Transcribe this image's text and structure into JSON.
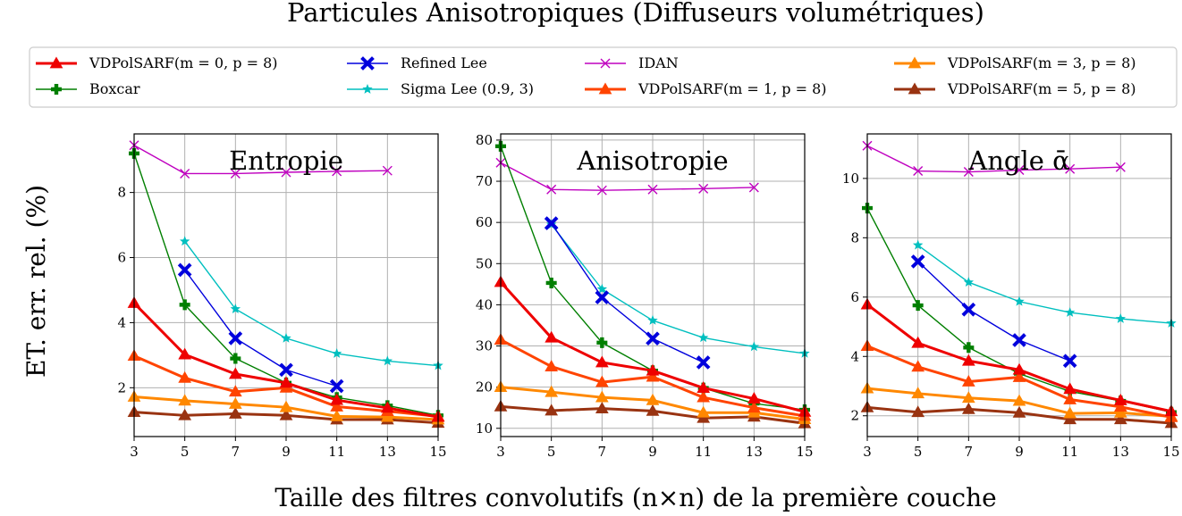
{
  "figure": {
    "suptitle": "Particules Anisotropiques (Diffuseurs volumétriques)",
    "supxlabel": "Taille des filtres convolutifs (n×n) de la première couche",
    "supylabel": "ET. err. rel. (%)"
  },
  "legend": {
    "placement": "top",
    "items": [
      {
        "label": "VDPolSARF(m = 0, p = 8)",
        "color": "#ee0000",
        "marker": "triangle-up",
        "width": "thick"
      },
      {
        "label": "Boxcar",
        "color": "#007f00",
        "marker": "plus",
        "width": "thin"
      },
      {
        "label": "Refined Lee",
        "color": "#0000dd",
        "marker": "x-filled",
        "width": "thin"
      },
      {
        "label": "Sigma Lee (0.9, 3)",
        "color": "#00bfbf",
        "marker": "star",
        "width": "thin"
      },
      {
        "label": "IDAN",
        "color": "#bf00bf",
        "marker": "x",
        "width": "thin"
      },
      {
        "label": "VDPolSARF(m = 1, p = 8)",
        "color": "#ff4400",
        "marker": "triangle-up",
        "width": "thick"
      },
      {
        "label": "VDPolSARF(m = 3, p = 8)",
        "color": "#ff8800",
        "marker": "triangle-up",
        "width": "thick"
      },
      {
        "label": "VDPolSARF(m = 5, p = 8)",
        "color": "#993311",
        "marker": "triangle-up",
        "width": "thick"
      }
    ]
  },
  "chart_data": [
    {
      "type": "line",
      "title": "Entropie",
      "x": [
        3,
        5,
        7,
        9,
        11,
        13,
        15
      ],
      "xlim": [
        3,
        15
      ],
      "ylim": [
        0.5,
        9.8
      ],
      "xticks": [
        3,
        5,
        7,
        9,
        11,
        13,
        15
      ],
      "yticks": [
        2,
        4,
        6,
        8
      ],
      "grid": true,
      "series": [
        {
          "name": "IDAN",
          "values": [
            9.45,
            8.58,
            8.58,
            8.62,
            8.65,
            8.67,
            null
          ]
        },
        {
          "name": "Boxcar",
          "values": [
            9.2,
            4.55,
            2.9,
            2.15,
            1.7,
            1.45,
            1.15
          ]
        },
        {
          "name": "Sigma Lee (0.9, 3)",
          "values": [
            null,
            6.5,
            4.42,
            3.52,
            3.05,
            2.82,
            2.68
          ]
        },
        {
          "name": "Refined Lee",
          "values": [
            null,
            5.62,
            3.52,
            2.55,
            2.05,
            null,
            null
          ]
        },
        {
          "name": "VDPolSARF(m = 0, p = 8)",
          "values": [
            4.6,
            3.02,
            2.42,
            2.15,
            1.62,
            1.38,
            1.1
          ]
        },
        {
          "name": "VDPolSARF(m = 1, p = 8)",
          "values": [
            2.98,
            2.3,
            1.88,
            2.0,
            1.42,
            1.28,
            1.12
          ]
        },
        {
          "name": "VDPolSARF(m = 3, p = 8)",
          "values": [
            1.72,
            1.6,
            1.5,
            1.4,
            1.12,
            1.1,
            1.02
          ]
        },
        {
          "name": "VDPolSARF(m = 5, p = 8)",
          "values": [
            1.25,
            1.15,
            1.2,
            1.15,
            1.02,
            1.02,
            0.92
          ]
        }
      ]
    },
    {
      "type": "line",
      "title": "Anisotropie",
      "x": [
        3,
        5,
        7,
        9,
        11,
        13,
        15
      ],
      "xlim": [
        3,
        15
      ],
      "ylim": [
        8,
        81.5
      ],
      "xticks": [
        3,
        5,
        7,
        9,
        11,
        13,
        15
      ],
      "yticks": [
        10,
        20,
        30,
        40,
        50,
        60,
        70,
        80
      ],
      "grid": true,
      "series": [
        {
          "name": "IDAN",
          "values": [
            74.5,
            68.0,
            67.8,
            68.0,
            68.2,
            68.5,
            null
          ]
        },
        {
          "name": "Boxcar",
          "values": [
            78.5,
            45.3,
            30.8,
            24.0,
            19.8,
            16.0,
            14.5
          ]
        },
        {
          "name": "Sigma Lee (0.9, 3)",
          "values": [
            null,
            59.5,
            43.8,
            36.2,
            32.0,
            29.8,
            28.2
          ]
        },
        {
          "name": "Refined Lee",
          "values": [
            null,
            59.8,
            41.8,
            31.8,
            26.0,
            null,
            null
          ]
        },
        {
          "name": "VDPolSARF(m = 0, p = 8)",
          "values": [
            45.5,
            32.0,
            26.0,
            24.0,
            19.8,
            17.2,
            14.0
          ]
        },
        {
          "name": "VDPolSARF(m = 1, p = 8)",
          "values": [
            31.5,
            25.0,
            21.2,
            22.5,
            17.5,
            15.0,
            13.0
          ]
        },
        {
          "name": "VDPolSARF(m = 3, p = 8)",
          "values": [
            20.0,
            18.8,
            17.5,
            16.8,
            13.8,
            13.8,
            12.2
          ]
        },
        {
          "name": "VDPolSARF(m = 5, p = 8)",
          "values": [
            15.3,
            14.3,
            14.8,
            14.2,
            12.5,
            12.8,
            11.2
          ]
        }
      ]
    },
    {
      "type": "line",
      "title": "Angle ᾱ",
      "x": [
        3,
        5,
        7,
        9,
        11,
        13,
        15
      ],
      "xlim": [
        3,
        15
      ],
      "ylim": [
        1.3,
        11.5
      ],
      "xticks": [
        3,
        5,
        7,
        9,
        11,
        13,
        15
      ],
      "yticks": [
        2,
        4,
        6,
        8,
        10
      ],
      "grid": true,
      "series": [
        {
          "name": "IDAN",
          "values": [
            11.1,
            10.25,
            10.22,
            10.28,
            10.32,
            10.38,
            null
          ]
        },
        {
          "name": "Boxcar",
          "values": [
            9.0,
            5.72,
            4.3,
            3.42,
            2.82,
            2.5,
            2.12
          ]
        },
        {
          "name": "Sigma Lee (0.9, 3)",
          "values": [
            null,
            7.75,
            6.5,
            5.85,
            5.48,
            5.27,
            5.12
          ]
        },
        {
          "name": "Refined Lee",
          "values": [
            null,
            7.2,
            5.58,
            4.55,
            3.85,
            null,
            null
          ]
        },
        {
          "name": "VDPolSARF(m = 0, p = 8)",
          "values": [
            5.75,
            4.45,
            3.85,
            3.55,
            2.9,
            2.52,
            2.15
          ]
        },
        {
          "name": "VDPolSARF(m = 1, p = 8)",
          "values": [
            4.35,
            3.65,
            3.15,
            3.3,
            2.55,
            2.3,
            1.95
          ]
        },
        {
          "name": "VDPolSARF(m = 3, p = 8)",
          "values": [
            2.92,
            2.75,
            2.6,
            2.5,
            2.08,
            2.1,
            1.98
          ]
        },
        {
          "name": "VDPolSARF(m = 5, p = 8)",
          "values": [
            2.28,
            2.12,
            2.22,
            2.1,
            1.88,
            1.88,
            1.75
          ]
        }
      ]
    }
  ]
}
